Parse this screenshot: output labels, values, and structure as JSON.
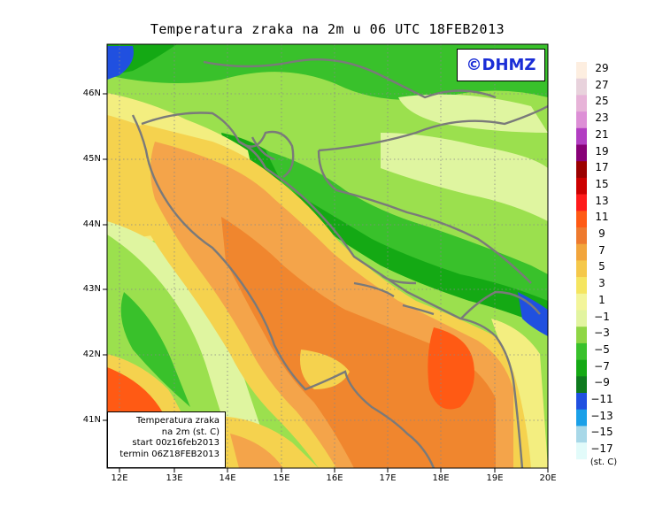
{
  "title": "Temperatura zraka na 2m u 06 UTC 18FEB2013",
  "copyright": "©DHMZ",
  "info_box": {
    "line1": "Temperatura zraka",
    "line2": "na 2m (st. C)",
    "line3": "start 00z16feb2013",
    "line4": "termin 06Z18FEB2013"
  },
  "lat_labels": [
    "46N",
    "45N",
    "44N",
    "43N",
    "42N",
    "41N"
  ],
  "lon_labels": [
    "12E",
    "13E",
    "14E",
    "15E",
    "16E",
    "17E",
    "18E",
    "19E",
    "20E"
  ],
  "legend": {
    "unit": "(st. C)",
    "labels": [
      "29",
      "27",
      "25",
      "23",
      "21",
      "19",
      "17",
      "15",
      "13",
      "11",
      "9",
      "7",
      "5",
      "3",
      "1",
      "−1",
      "−3",
      "−5",
      "−7",
      "−9",
      "−11",
      "−13",
      "−15",
      "−17"
    ],
    "colors": [
      "#fdeee0",
      "#e8d2dc",
      "#e7b3d8",
      "#dd8fd6",
      "#b23ec2",
      "#880077",
      "#9b0000",
      "#cc0000",
      "#ff1a1a",
      "#ff5a14",
      "#ee7a2e",
      "#f2a53c",
      "#f5c84a",
      "#f5e560",
      "#f3f59a",
      "#e2f4a0",
      "#8fd645",
      "#39c12b",
      "#14a914",
      "#0e7a1e",
      "#2050e0",
      "#1aa0e8",
      "#a8d8e8",
      "#e2fbfa"
    ]
  },
  "map_colors": {
    "sea_warm": "#f0862e",
    "sea_orange": "#f4a44a",
    "sea_light": "#f5d24e",
    "coast_yellow": "#f3ee80",
    "pale_green": "#dff5a0",
    "light_green": "#9be04e",
    "green": "#39c12b",
    "dark_green": "#14a914",
    "blue": "#2050e0",
    "red_orange": "#ff5a14"
  }
}
